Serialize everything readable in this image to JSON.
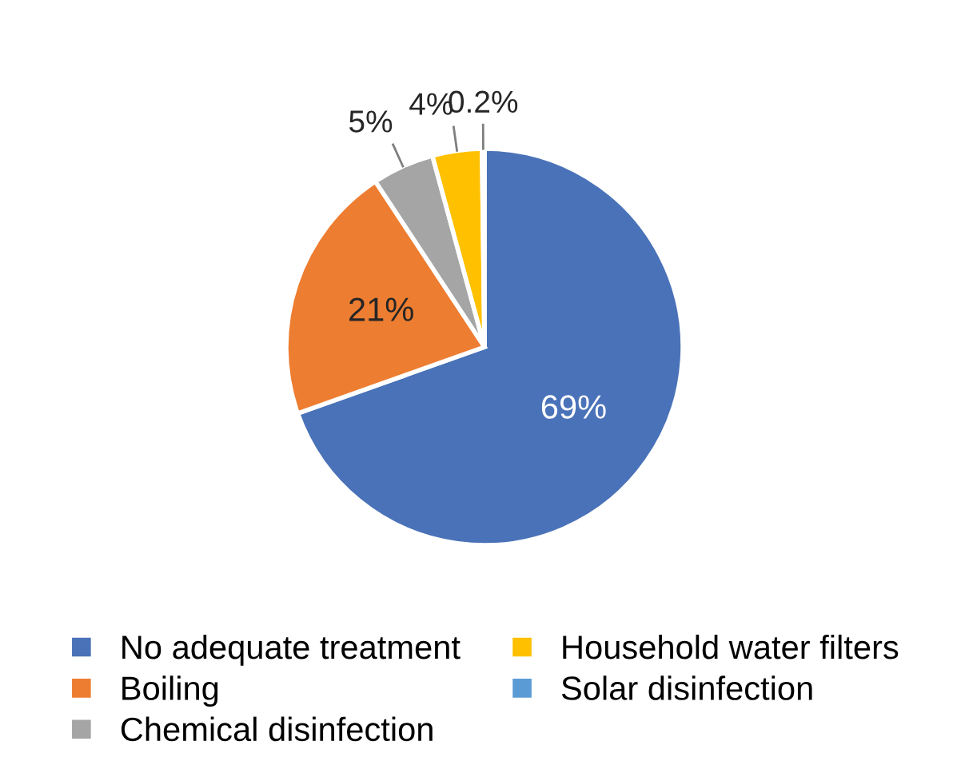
{
  "chart_data": {
    "type": "pie",
    "categories": [
      "No adequate treatment",
      "Boiling",
      "Chemical disinfection",
      "Household water filters",
      "Solar disinfection"
    ],
    "values": [
      69,
      21,
      5,
      4,
      0.2
    ],
    "colors": [
      "#4a72b8",
      "#ed7d31",
      "#a5a5a5",
      "#ffc000",
      "#5b9bd5"
    ],
    "value_labels": [
      "69%",
      "21%",
      "5%",
      "4%",
      "0.2%"
    ],
    "legend": "bottom"
  }
}
